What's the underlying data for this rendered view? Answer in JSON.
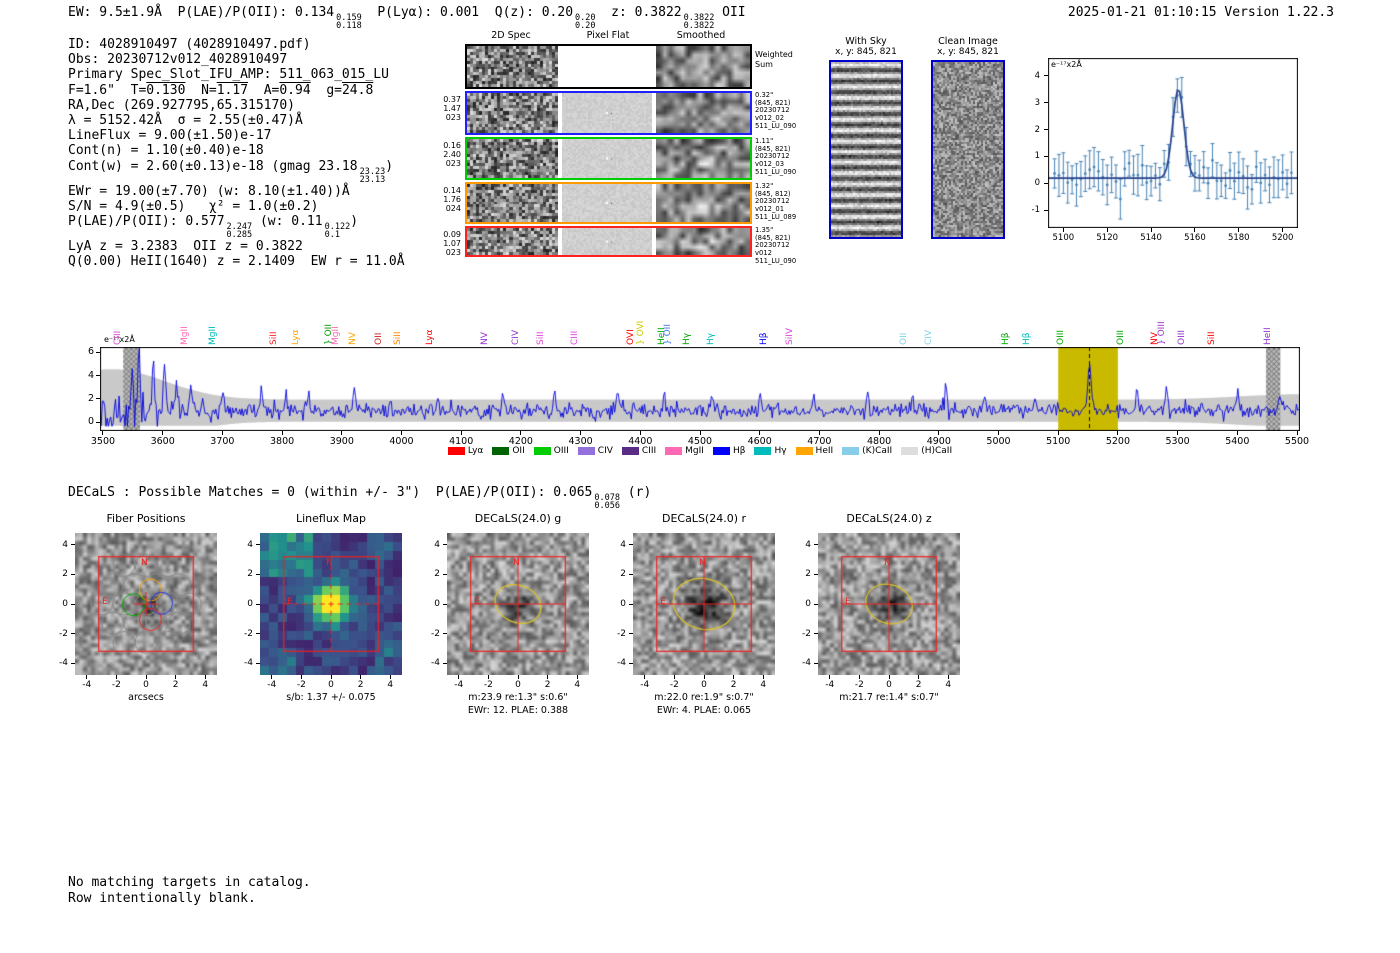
{
  "header": {
    "segments": [
      {
        "t": "EW: 9.5±1.9Å  P(LAE)/P(OII): 0.134"
      },
      {
        "f": [
          "0.159",
          "0.118"
        ]
      },
      {
        "t": "  P(Lyα): 0.001  Q(z): 0.20"
      },
      {
        "f": [
          "0.20",
          "0.20"
        ]
      },
      {
        "t": "  z: 0.3822"
      },
      {
        "f": [
          "0.3822",
          "0.3822"
        ]
      },
      {
        "t": " OII"
      }
    ],
    "timestamp": "2025-01-21 01:10:15  Version 1.22.3"
  },
  "info_lines": [
    [
      {
        "t": "ID: 4028910497 (4028910497.pdf)"
      }
    ],
    [
      {
        "t": "Obs: 20230712v012_4028910497"
      }
    ],
    [
      {
        "t": "Primary Spec_Slot_IFU_AMP: 511_063_015_LU"
      }
    ],
    [
      {
        "t": "F=1.6\"  T="
      },
      {
        "o": "0.130"
      },
      {
        "t": "  N="
      },
      {
        "o": "1.17"
      },
      {
        "t": "  A="
      },
      {
        "o": "0.94"
      },
      {
        "t": "  g="
      },
      {
        "o": "24.8"
      }
    ],
    [
      {
        "t": "RA,Dec (269.927795,65.315170)"
      }
    ],
    [
      {
        "t": "λ = 5152.42Å  σ = 2.55(±0.47)Å"
      }
    ],
    [
      {
        "t": "LineFlux = 9.00(±1.50)e-17"
      }
    ],
    [
      {
        "t": "Cont(n) = 1.10(±0.40)e-18"
      }
    ],
    [
      {
        "t": "Cont(w) = 2.60(±0.13)e-18 (gmag 23.18"
      },
      {
        "f": [
          "23.23",
          "23.13"
        ]
      },
      {
        "t": ")"
      }
    ],
    [
      {
        "t": "EWr = 19.00(±7.70) (w: 8.10(±1.40))Å"
      }
    ],
    [
      {
        "t": "S/N = 4.9(±0.5)   χ² = 1.0(±0.2)"
      }
    ],
    [
      {
        "t": "P(LAE)/P(OII): 0.577"
      },
      {
        "f": [
          "2.247",
          "0.285"
        ]
      },
      {
        "t": " (w: 0.11"
      },
      {
        "f": [
          "0.122",
          "0.1"
        ]
      },
      {
        "t": ")"
      }
    ],
    [
      {
        "t": "LyA z = 3.2383  OII z = 0.3822"
      }
    ],
    [
      {
        "t": "Q(0.00) HeII(1640) z = 2.1409  EW r = 11.0Å"
      }
    ]
  ],
  "cutouts": {
    "col_headers": [
      "2D Spec",
      "Pixel Flat",
      "Smoothed"
    ],
    "rows": [
      {
        "border": "#000000",
        "left": [],
        "right": [
          "Weighted",
          "Sum"
        ]
      },
      {
        "border": "#1f1fff",
        "left": [
          "0.37",
          "1.47",
          "023"
        ],
        "right": [
          "0.32\"",
          "(845, 821)",
          "20230712",
          "v012_02",
          "511_LU_090"
        ]
      },
      {
        "border": "#00cc00",
        "left": [
          "0.16",
          "2.40",
          "023"
        ],
        "right": [
          "1.11\"",
          "(845, 821)",
          "20230712",
          "v012_03",
          "511_LU_090"
        ]
      },
      {
        "border": "#ff9900",
        "left": [
          "0.14",
          "1.76",
          "024"
        ],
        "right": [
          "1.32\"",
          "(845, 812)",
          "20230712",
          "v012_01",
          "511_LU_089"
        ]
      },
      {
        "border": "#ff2020",
        "left": [
          "0.09",
          "1.07",
          "023"
        ],
        "right": [
          "1.35\"",
          "(845, 821)",
          "20230712",
          "v012",
          "511_LU_090"
        ]
      }
    ]
  },
  "sky_panels": [
    {
      "title": "With Sky",
      "coords": "x, y: 845, 821"
    },
    {
      "title": "Clean Image",
      "coords": "x, y: 845, 821"
    }
  ],
  "chart_data": [
    {
      "type": "line",
      "name": "emission-line-fit-zoom",
      "units_label": "e⁻¹⁷x2Å",
      "xlim": [
        5093,
        5207
      ],
      "ylim": [
        -1.65,
        4.65
      ],
      "xticks": [
        5100,
        5120,
        5140,
        5160,
        5180,
        5200
      ],
      "yticks": [
        -1,
        0,
        1,
        2,
        3,
        4
      ],
      "gaussian_fit": {
        "center": 5152.42,
        "sigma": 2.55,
        "amplitude": 3.3,
        "continuum": 0.2
      },
      "marker_color": "#4682b4",
      "fit_color": "#27408b",
      "description": "observed spectrum data points with error bars and Gaussian line fit"
    },
    {
      "type": "line",
      "name": "full-spectrum",
      "units_label": "e⁻¹⁷x2Å",
      "xlim": [
        3495,
        5505
      ],
      "ylim": [
        -0.75,
        6.45
      ],
      "xticks": [
        3500,
        3600,
        3700,
        3800,
        3900,
        4000,
        4100,
        4200,
        4300,
        4400,
        4500,
        4600,
        4700,
        4800,
        4900,
        5000,
        5100,
        5200,
        5300,
        5400,
        5500
      ],
      "yticks": [
        0,
        2,
        4,
        6
      ],
      "continuum": 1.0,
      "emission_line": {
        "center": 5152.42,
        "amplitude": 3.9,
        "sigma": 3.0
      },
      "highlight_region": [
        5100,
        5200
      ],
      "highlight_color": "#c9ba00",
      "masked_regions": [
        [
          3534,
          3562
        ],
        [
          5448,
          5472
        ]
      ],
      "spectrum_color": "#0000dd",
      "error_band_color": "#c9c9c9",
      "line_labels": [
        {
          "text": "CIII",
          "x": 3525,
          "color": "#dd44dd"
        },
        {
          "text": "MgII",
          "x": 3637,
          "color": "#ff69b4"
        },
        {
          "text": "MgII",
          "x": 3684,
          "color": "#00bbbb"
        },
        {
          "text": "SiII",
          "x": 3786,
          "color": "#ff2222"
        },
        {
          "text": "Lyα",
          "x": 3824,
          "color": "#ffa500"
        },
        {
          "text": "} OII",
          "x": 3878,
          "color": "#009900"
        },
        {
          "text": "MgII",
          "x": 3890,
          "color": "#ff69b4"
        },
        {
          "text": "NV",
          "x": 3918,
          "color": "#ffa500"
        },
        {
          "text": "OII",
          "x": 3962,
          "color": "#cc2222"
        },
        {
          "text": "SiII",
          "x": 3994,
          "color": "#ff8800"
        },
        {
          "text": "Lyα",
          "x": 4048,
          "color": "#ff0000"
        },
        {
          "text": "NV",
          "x": 4140,
          "color": "#9932cc"
        },
        {
          "text": "CIV",
          "x": 4192,
          "color": "#9932cc"
        },
        {
          "text": "SiII",
          "x": 4233,
          "color": "#dd44dd"
        },
        {
          "text": "CIII",
          "x": 4290,
          "color": "#dd44dd"
        },
        {
          "text": "OVI",
          "x": 4385,
          "color": "#ff0000"
        },
        {
          "text": "} OVI",
          "x": 4402,
          "color": "#cccc00"
        },
        {
          "text": "HeII",
          "x": 4437,
          "color": "#00aa00"
        },
        {
          "text": "} OII",
          "x": 4446,
          "color": "#4477ee"
        },
        {
          "text": "Hγ",
          "x": 4478,
          "color": "#00aa00"
        },
        {
          "text": "Hγ",
          "x": 4518,
          "color": "#00bbbb"
        },
        {
          "text": "Hβ",
          "x": 4608,
          "color": "#0000ff"
        },
        {
          "text": "SiIV",
          "x": 4650,
          "color": "#dd44dd"
        },
        {
          "text": "OII",
          "x": 4842,
          "color": "#7fd4e8"
        },
        {
          "text": "CIV",
          "x": 4884,
          "color": "#7fd4e8"
        },
        {
          "text": "Hβ",
          "x": 5012,
          "color": "#00aa00"
        },
        {
          "text": "Hβ",
          "x": 5048,
          "color": "#00bbbb"
        },
        {
          "text": "OIII",
          "x": 5105,
          "color": "#00aa00"
        },
        {
          "text": "OIII",
          "x": 5205,
          "color": "#00aa00"
        },
        {
          "text": "NV",
          "x": 5262,
          "color": "#ff0000"
        },
        {
          "text": "} OIII",
          "x": 5274,
          "color": "#9932cc"
        },
        {
          "text": "OIII",
          "x": 5308,
          "color": "#9932cc"
        },
        {
          "text": "SiII",
          "x": 5358,
          "color": "#ff0000"
        },
        {
          "text": "HeII",
          "x": 5452,
          "color": "#9932cc"
        }
      ],
      "legend": [
        {
          "label": "Lyα",
          "color": "#ff0000"
        },
        {
          "label": "OII",
          "color": "#006400"
        },
        {
          "label": "OIII",
          "color": "#00cc00"
        },
        {
          "label": "CIV",
          "color": "#9370db"
        },
        {
          "label": "CIII",
          "color": "#5b2c83"
        },
        {
          "label": "MgII",
          "color": "#ff69b4"
        },
        {
          "label": "Hβ",
          "color": "#0000ff"
        },
        {
          "label": "Hγ",
          "color": "#00bbbb"
        },
        {
          "label": "HeII",
          "color": "#ffa500"
        },
        {
          "label": "(K)CaII",
          "color": "#87ceeb"
        },
        {
          "label": "(H)CaII",
          "color": "#dddddd"
        }
      ]
    }
  ],
  "matches_line": {
    "segments": [
      {
        "t": "DECaLS : Possible Matches = 0 (within +/- 3\")  P(LAE)/P(OII): 0.065"
      },
      {
        "f": [
          "0.078",
          "0.056"
        ]
      },
      {
        "t": " (r)"
      }
    ]
  },
  "panels": {
    "xticks": [
      "-4",
      "-2",
      "0",
      "2",
      "4"
    ],
    "yticks": [
      "4",
      "2",
      "0",
      "-2",
      "-4"
    ],
    "compass": {
      "n": "N",
      "e": "E"
    },
    "items": [
      {
        "title": "Fiber Positions",
        "kind": "fibers",
        "xlabel": "arcsecs"
      },
      {
        "title": "Lineflux Map",
        "kind": "lineflux",
        "caption1": "s/b: 1.37 +/- 0.075"
      },
      {
        "title": "DECaLS(24.0) g",
        "kind": "cutout",
        "caption1": "m:23.9 re:1.3\" s:0.6\"",
        "caption2": "EWr: 12. PLAE: 0.388",
        "ellipse": [
          1.6,
          1.25,
          0.4
        ]
      },
      {
        "title": "DECaLS(24.0) r",
        "kind": "cutout",
        "caption1": "m:22.0 re:1.9\" s:0.7\"",
        "caption2": "EWr: 4. PLAE: 0.065",
        "ellipse": [
          2.1,
          1.7,
          0.25
        ]
      },
      {
        "title": "DECaLS(24.0) z",
        "kind": "cutout",
        "caption1": "m:21.7 re:1.4\" s:0.7\"",
        "ellipse": [
          1.6,
          1.3,
          0.35
        ]
      }
    ]
  },
  "footer_lines": [
    "No matching targets in catalog.",
    "Row intentionally blank."
  ]
}
